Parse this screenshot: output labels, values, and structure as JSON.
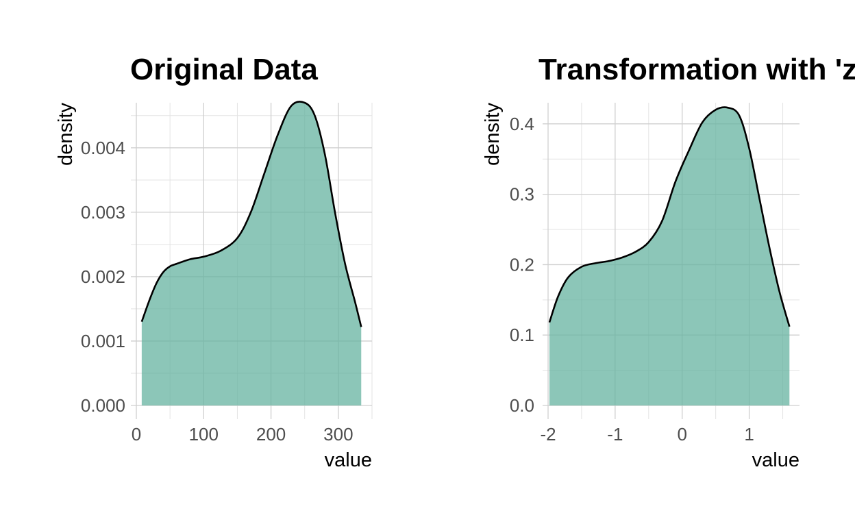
{
  "chart_data": [
    {
      "type": "area",
      "title": "Original Data",
      "xlabel": "value",
      "ylabel": "density",
      "xlim": [
        0,
        350
      ],
      "ylim": [
        0,
        0.0047
      ],
      "x_ticks": [
        0,
        100,
        200,
        300
      ],
      "x_tick_labels": [
        "0",
        "100",
        "200",
        "300"
      ],
      "y_ticks": [
        0,
        0.001,
        0.002,
        0.003,
        0.004
      ],
      "y_tick_labels": [
        "0.000",
        "0.001",
        "0.002",
        "0.003",
        "0.004"
      ],
      "grid": true,
      "fill_color": "#66b3a0",
      "line_color": "#000000",
      "x": [
        8,
        20,
        30,
        40,
        50,
        60,
        80,
        100,
        125,
        150,
        170,
        190,
        210,
        230,
        250,
        265,
        280,
        295,
        310,
        325,
        334
      ],
      "y": [
        0.0013,
        0.00165,
        0.0019,
        0.00207,
        0.00216,
        0.0022,
        0.00227,
        0.00231,
        0.0024,
        0.0026,
        0.003,
        0.0036,
        0.0042,
        0.00465,
        0.0047,
        0.0045,
        0.0039,
        0.003,
        0.0022,
        0.0016,
        0.00122
      ]
    },
    {
      "type": "area",
      "title": "Transformation with 'zsc",
      "xlabel": "value",
      "ylabel": "density",
      "xlim": [
        -2.0,
        1.75
      ],
      "ylim": [
        0,
        0.43
      ],
      "x_ticks": [
        -2,
        -1,
        0,
        1
      ],
      "x_tick_labels": [
        "-2",
        "-1",
        "0",
        "1"
      ],
      "y_ticks": [
        0,
        0.1,
        0.2,
        0.3,
        0.4
      ],
      "y_tick_labels": [
        "0.0",
        "0.1",
        "0.2",
        "0.3",
        "0.4"
      ],
      "grid": true,
      "fill_color": "#66b3a0",
      "line_color": "#000000",
      "x": [
        -1.98,
        -1.85,
        -1.7,
        -1.5,
        -1.3,
        -1.1,
        -0.9,
        -0.7,
        -0.5,
        -0.3,
        -0.1,
        0.1,
        0.3,
        0.5,
        0.68,
        0.85,
        1.0,
        1.15,
        1.3,
        1.45,
        1.6
      ],
      "y": [
        0.118,
        0.155,
        0.182,
        0.197,
        0.202,
        0.205,
        0.21,
        0.218,
        0.232,
        0.262,
        0.318,
        0.362,
        0.402,
        0.42,
        0.423,
        0.412,
        0.365,
        0.295,
        0.225,
        0.162,
        0.112
      ]
    }
  ]
}
